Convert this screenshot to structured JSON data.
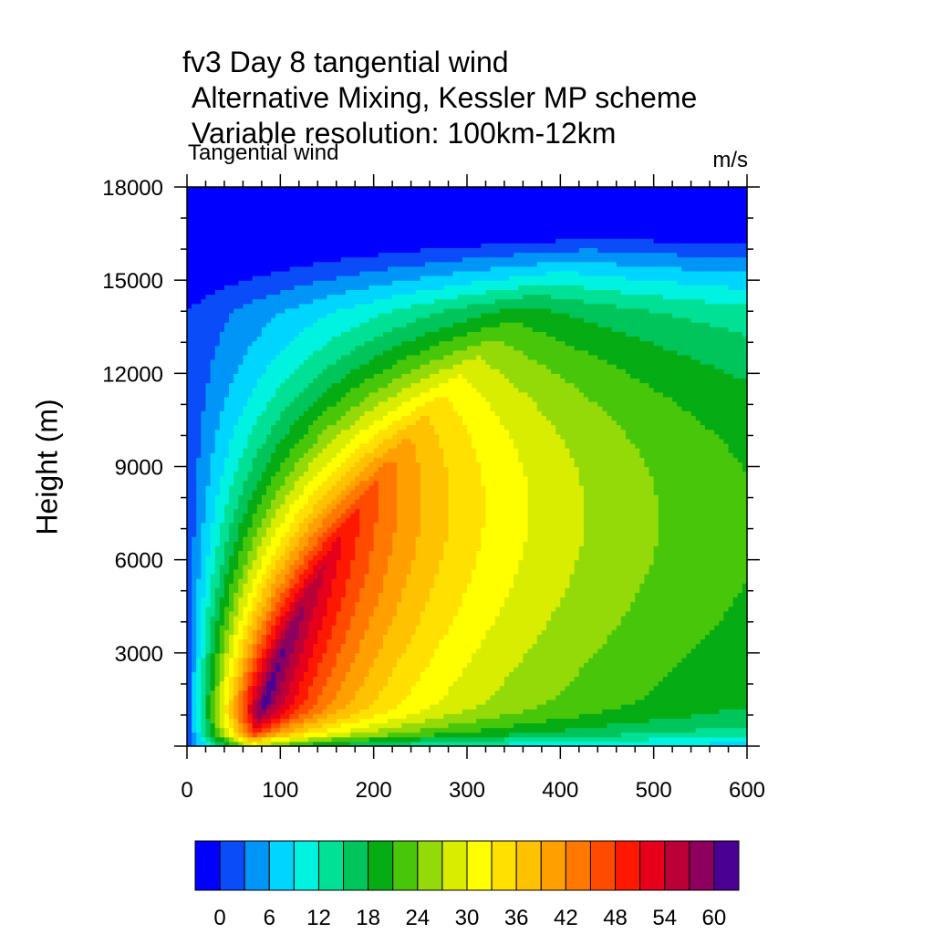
{
  "chart_data": {
    "type": "heatmap",
    "title_lines": [
      "fv3 Day 8 tangential wind",
      " Alternative Mixing, Kessler MP scheme",
      " Variable resolution: 100km-12km"
    ],
    "subtitle": "Tangential wind",
    "units": "m/s",
    "xlabel": "",
    "ylabel": "Height (m)",
    "xlim": [
      0,
      600
    ],
    "ylim": [
      0,
      18000
    ],
    "x_ticks": [
      0,
      100,
      200,
      300,
      400,
      500,
      600
    ],
    "y_ticks": [
      3000,
      6000,
      9000,
      12000,
      15000,
      18000
    ],
    "colorbar": {
      "levels": [
        -3,
        0,
        3,
        6,
        9,
        12,
        15,
        18,
        21,
        24,
        27,
        30,
        33,
        36,
        39,
        42,
        45,
        48,
        51,
        54,
        57,
        60,
        63
      ],
      "tick_labels": [
        "0",
        "6",
        "12",
        "18",
        "24",
        "30",
        "36",
        "42",
        "48",
        "54",
        "60"
      ],
      "colors": [
        "#0000ff",
        "#0a4cf8",
        "#0095f7",
        "#00d5ff",
        "#00f3e1",
        "#00e196",
        "#00c55a",
        "#05ac14",
        "#48c70a",
        "#94da08",
        "#d8ed00",
        "#ffff00",
        "#ffe000",
        "#ffc200",
        "#ffa000",
        "#ff7800",
        "#ff4b00",
        "#ff1800",
        "#e6001b",
        "#ba0037",
        "#8d005e",
        "#4b0094"
      ]
    },
    "contour_field_description": "Tangential wind maximum ~62 m/s near radius 70 km, height 1500 m; decreasing outward and upward",
    "peak": {
      "x": 70,
      "y": 1500,
      "value": 62
    }
  }
}
